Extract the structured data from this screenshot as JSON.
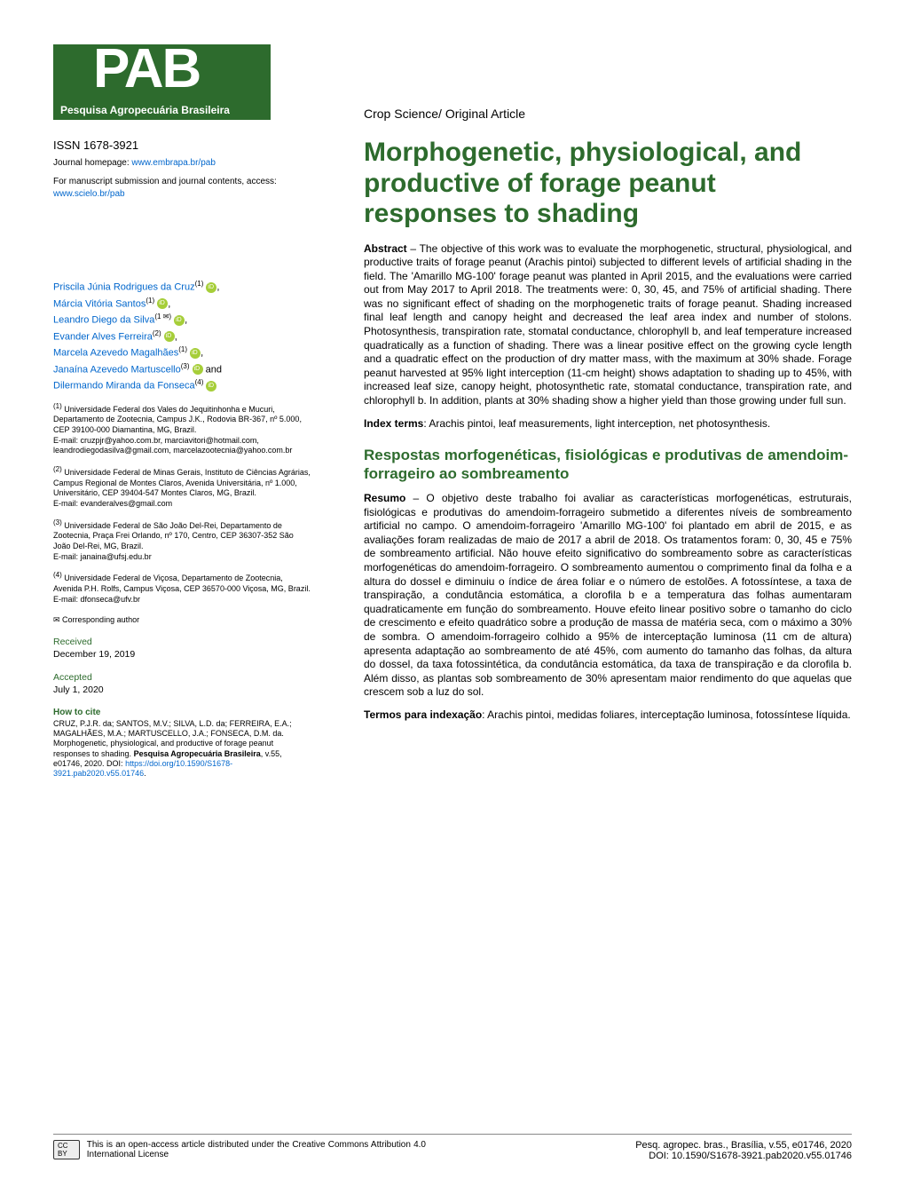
{
  "logo": {
    "main": "PAB",
    "sub": "Pesquisa Agropecuária Brasileira"
  },
  "header": {
    "section": "Crop Science/ Original Article"
  },
  "journal_meta": {
    "issn": "ISSN 1678-3921",
    "homepage_label": "Journal homepage: ",
    "homepage_url": "www.embrapa.br/pab",
    "manuscript_label": "For manuscript submission and journal contents, access: ",
    "manuscript_url": "www.scielo.br/pab"
  },
  "authors": [
    {
      "name": "Priscila Júnia Rodrigues da Cruz",
      "aff": "(1)"
    },
    {
      "name": "Márcia Vitória Santos",
      "aff": "(1)"
    },
    {
      "name": "Leandro Diego da Silva",
      "aff": "(1 ✉)"
    },
    {
      "name": "Evander Alves Ferreira",
      "aff": "(2)"
    },
    {
      "name": "Marcela Azevedo Magalhães",
      "aff": "(1)"
    },
    {
      "name": "Janaína Azevedo Martuscello",
      "aff": "(3)"
    },
    {
      "name": "Dilermando Miranda da Fonseca",
      "aff": "(4)"
    }
  ],
  "author_tail_and": " and",
  "affiliations": [
    {
      "num": "(1)",
      "text": "Universidade Federal dos Vales do Jequitinhonha e Mucuri, Departamento de Zootecnia, Campus J.K., Rodovia BR-367, nº 5.000, CEP 39100-000 Diamantina, MG, Brazil.",
      "emails": "E-mail: cruzpjr@yahoo.com.br, marciavitori@hotmail.com, leandrodiegodasilva@gmail.com, marcelazootecnia@yahoo.com.br"
    },
    {
      "num": "(2)",
      "text": "Universidade Federal de Minas Gerais, Instituto de Ciências Agrárias, Campus Regional de Montes Claros, Avenida Universitária, nº 1.000, Universitário, CEP 39404-547 Montes Claros, MG, Brazil.",
      "emails": "E-mail: evanderalves@gmail.com"
    },
    {
      "num": "(3)",
      "text": "Universidade Federal de São João Del-Rei, Departamento de Zootecnia, Praça Frei Orlando, nº 170, Centro, CEP 36307-352 São João Del-Rei, MG, Brazil.",
      "emails": "E-mail: janaina@ufsj.edu.br"
    },
    {
      "num": "(4)",
      "text": "Universidade Federal de Viçosa, Departamento de Zootecnia, Avenida P.H. Rolfs, Campus Viçosa, CEP 36570-000 Viçosa, MG, Brazil.",
      "emails": "E-mail: dfonseca@ufv.br"
    }
  ],
  "corresponding": "✉ Corresponding author",
  "received": {
    "label": "Received",
    "date": "December 19, 2019"
  },
  "accepted": {
    "label": "Accepted",
    "date": "July 1, 2020"
  },
  "howto": {
    "label": "How to cite",
    "text1": "CRUZ, P.J.R. da; SANTOS, M.V.; SILVA, L.D. da; FERREIRA, E.A.; MAGALHÃES, M.A.; MARTUSCELLO, J.A.; FONSECA, D.M. da. Morphogenetic, physiological, and productive of forage peanut responses to shading. ",
    "journal": "Pesquisa Agropecuária Brasileira",
    "text2": ", v.55, e01746, 2020. DOI: ",
    "doi": "https://doi.org/10.1590/S1678-3921.pab2020.v55.01746",
    "text3": "."
  },
  "article": {
    "title": "Morphogenetic, physiological, and productive of forage peanut responses to shading",
    "abstract_label": "Abstract",
    "abstract_text": " – The objective of this work was to evaluate the morphogenetic, structural, physiological, and productive traits of forage peanut (Arachis pintoi) subjected to different levels of artificial shading in the field. The 'Amarillo MG-100' forage peanut was planted in April 2015, and the evaluations were carried out from May 2017 to April 2018. The treatments were: 0, 30, 45, and 75% of artificial shading. There was no significant effect of shading on the morphogenetic traits of forage peanut. Shading increased final leaf length and canopy height and decreased the leaf area index and number of stolons. Photosynthesis, transpiration rate, stomatal conductance, chlorophyll b, and leaf temperature increased quadratically as a function of shading. There was a linear positive effect on the growing cycle length and a quadratic effect on the production of dry matter mass, with the maximum at 30% shade. Forage peanut harvested at 95% light interception (11-cm height) shows adaptation to shading up to 45%, with increased leaf size, canopy height, photosynthetic rate, stomatal conductance, transpiration rate, and chlorophyll b. In addition, plants at 30% shading show a higher yield than those growing under full sun.",
    "index_label": "Index terms",
    "index_text": ": Arachis pintoi, leaf measurements, light interception, net photosynthesis.",
    "pt_title": "Respostas morfogenéticas, fisiológicas e produtivas de amendoim-forrageiro ao sombreamento",
    "resumo_label": "Resumo",
    "resumo_text": " – O objetivo deste trabalho foi avaliar as características morfogenéticas, estruturais, fisiológicas e produtivas do amendoim-forrageiro submetido a diferentes níveis de sombreamento artificial no campo. O amendoim-forrageiro 'Amarillo MG-100' foi plantado em abril de 2015, e as avaliações foram realizadas de maio de 2017 a abril de 2018. Os tratamentos foram: 0, 30, 45 e 75% de sombreamento artificial. Não houve efeito significativo do sombreamento sobre as características morfogenéticas do amendoim-forrageiro. O sombreamento aumentou o comprimento final da folha e a altura do dossel e diminuiu o índice de área foliar e o número de estolões. A fotossíntese, a taxa de transpiração, a condutância estomática, a clorofila b e a temperatura das folhas aumentaram quadraticamente em função do sombreamento. Houve efeito linear positivo sobre o tamanho do ciclo de crescimento e efeito quadrático sobre a produção de massa de matéria seca, com o máximo a 30% de sombra. O amendoim-forrageiro colhido a 95% de interceptação luminosa (11 cm de altura) apresenta adaptação ao sombreamento de até 45%, com aumento do tamanho das folhas, da altura do dossel, da taxa fotossintética, da condutância estomática, da taxa de transpiração e da clorofila b. Além disso, as plantas sob sombreamento de 30% apresentam maior rendimento do que aquelas que crescem sob a luz do sol.",
    "termos_label": "Termos para indexação",
    "termos_text": ": Arachis pintoi, medidas foliares, interceptação luminosa, fotossíntese líquida."
  },
  "footer": {
    "cc": "CC BY",
    "open_access": "This is an open-access article distributed under the Creative Commons Attribution 4.0 International License",
    "citation": "Pesq. agropec. bras., Brasília, v.55, e01746, 2020",
    "doi": "DOI: 10.1590/S1678-3921.pab2020.v55.01746"
  },
  "colors": {
    "brand_green": "#2d6b2d",
    "link_blue": "#0066cc",
    "orcid_green": "#a6ce39"
  }
}
